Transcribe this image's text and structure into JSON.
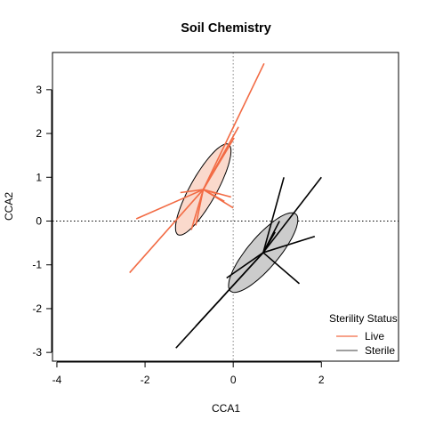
{
  "chart_data": {
    "type": "scatter",
    "title": "Soil Chemistry",
    "xlabel": "CCA1",
    "ylabel": "CCA2",
    "xlim": [
      -4.1,
      3.75
    ],
    "ylim": [
      -3.2,
      3.85
    ],
    "x_ticks": [
      -4,
      -2,
      0,
      2
    ],
    "x_tick_labels": [
      "-4",
      "-2",
      "0",
      "2"
    ],
    "y_ticks": [
      -3,
      -2,
      -1,
      0,
      1,
      2,
      3
    ],
    "y_tick_labels": [
      "-3",
      "-2",
      "-1",
      "0",
      "1",
      "2",
      "3"
    ],
    "grid": false,
    "reference_lines": {
      "x": 0,
      "y": 0,
      "style": "dotted"
    },
    "legend": {
      "title": "Sterility Status",
      "placement": "bottom-right",
      "entries": [
        "Live",
        "Sterile"
      ]
    },
    "series": [
      {
        "name": "Live",
        "color": "#F26B44",
        "fill": "#FAD9CC",
        "centroid": [
          -0.68,
          0.72
        ],
        "ellipse": {
          "semi_major": 1.18,
          "semi_minor": 0.3,
          "angle_deg": 61
        },
        "spokes": [
          [
            0.7,
            3.6
          ],
          [
            0.12,
            2.15
          ],
          [
            0.02,
            1.9
          ],
          [
            -0.55,
            0.95
          ],
          [
            -0.35,
            0.62
          ],
          [
            0,
            0.3
          ],
          [
            -0.05,
            0.55
          ],
          [
            -0.2,
            0.45
          ],
          [
            -1.2,
            0.65
          ],
          [
            -0.85,
            -0.1
          ],
          [
            -0.95,
            -0.2
          ],
          [
            -2.2,
            0.05
          ],
          [
            -2.35,
            -1.18
          ]
        ]
      },
      {
        "name": "Sterile",
        "color": "#000000",
        "fill": "#CCCCCC",
        "centroid": [
          0.68,
          -0.72
        ],
        "ellipse": {
          "semi_major": 1.15,
          "semi_minor": 0.35,
          "angle_deg": 50
        },
        "spokes": [
          [
            2.0,
            1.0
          ],
          [
            1.15,
            1.0
          ],
          [
            1.85,
            -0.35
          ],
          [
            1.5,
            -1.43
          ],
          [
            -0.15,
            -1.3
          ],
          [
            -0.85,
            -2.4
          ],
          [
            -1.3,
            -2.9
          ],
          [
            1.05,
            0.0
          ],
          [
            0.95,
            -0.25
          ]
        ]
      }
    ]
  },
  "colors": {
    "live": "#F26B44",
    "live_fill": "#FAD9CC",
    "sterile": "#000000",
    "sterile_fill": "#CCCCCC",
    "reference_line": "#999999",
    "legend_sterile_line": "#666666"
  }
}
